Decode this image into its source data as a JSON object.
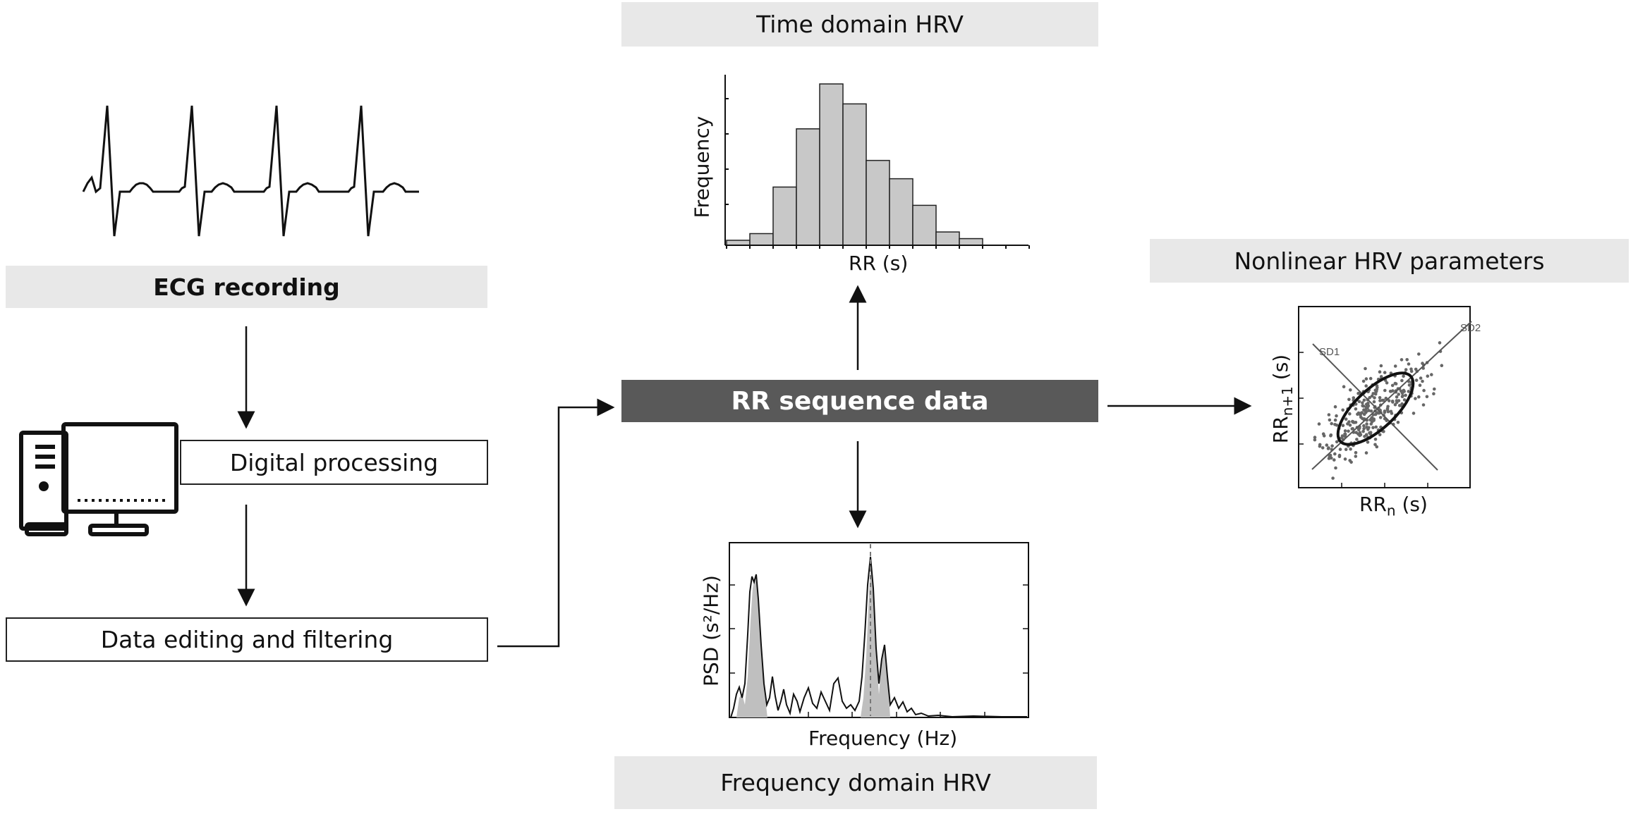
{
  "labels": {
    "ecg_recording": "ECG recording",
    "digital_processing": "Digital processing",
    "data_editing": "Data editing and filtering",
    "rr_sequence": "RR sequence data",
    "time_domain": "Time domain HRV",
    "frequency_domain": "Frequency domain HRV",
    "nonlinear": "Nonlinear HRV parameters"
  },
  "histogram": {
    "ylabel": "Frequency",
    "xlabel": "RR (s)",
    "bar_heights": [
      0.03,
      0.07,
      0.35,
      0.7,
      0.97,
      0.85,
      0.51,
      0.4,
      0.24,
      0.08,
      0.04
    ]
  },
  "psd": {
    "ylabel": "PSD (s²/Hz)",
    "xlabel": "Frequency (Hz)"
  },
  "poincare": {
    "sd1": "SD1",
    "sd2": "SD2",
    "ylabel_main": "RR",
    "ylabel_sub": "n+1",
    "ylabel_unit": " (s)",
    "xlabel_main": "RR",
    "xlabel_sub": "n",
    "xlabel_unit": " (s)"
  },
  "colors": {
    "label_bg": "#e8e8e8",
    "rr_box": "#595959",
    "bar_fill": "#c8c8c8"
  }
}
